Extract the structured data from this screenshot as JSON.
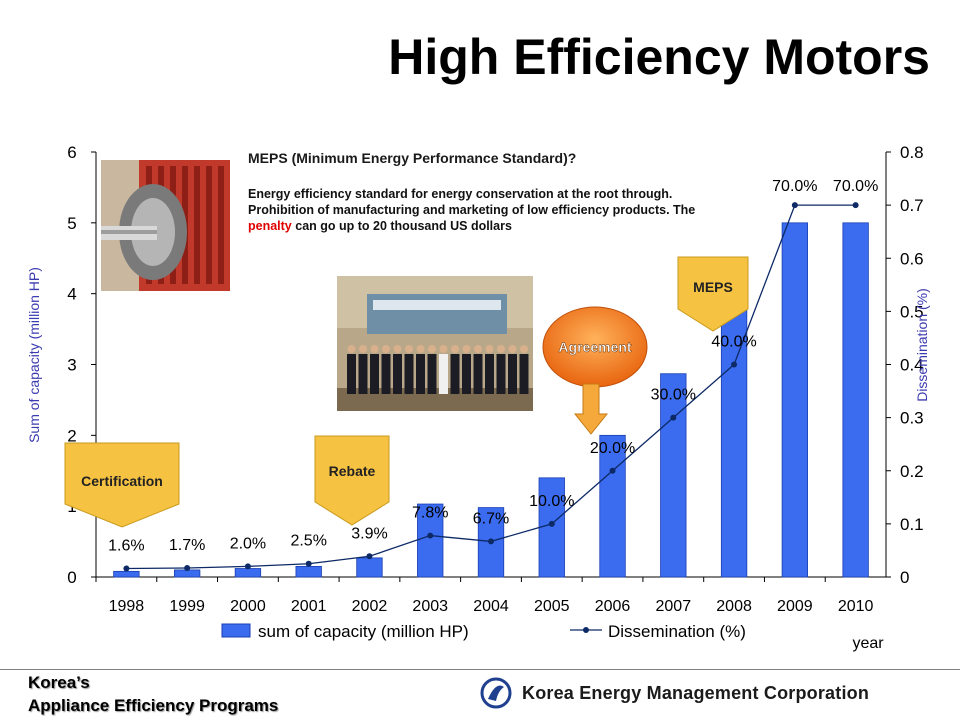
{
  "slide": {
    "title": "High Efficiency Motors",
    "footer_line1": "Korea’s",
    "footer_line2": "Appliance Efficiency Programs",
    "org_name": "Korea Energy Management Corporation",
    "logo_icon": "kemco-logo-icon"
  },
  "meps_note": {
    "heading": "MEPS (Minimum Energy Performance Standard)?",
    "desc_before": "Energy efficiency standard for energy conservation at the root through.  Prohibition of manufacturing and marketing of low efficiency products. The ",
    "desc_red": "penalty",
    "desc_after": " can go up to 20 thousand US dollars",
    "red_color": "#e00000"
  },
  "photos": {
    "motor": "motor-photo",
    "ceremony": "agreement-ceremony-photo"
  },
  "callouts": [
    {
      "label": "Certification",
      "shape": "pentagon-down",
      "color": "#f5c242"
    },
    {
      "label": "Rebate",
      "shape": "pentagon-down",
      "color": "#f5c242"
    },
    {
      "label": "Agreement",
      "shape": "ellipse",
      "color": "#f47a1e"
    },
    {
      "label": "MEPS",
      "shape": "pentagon-down",
      "color": "#f5c242"
    }
  ],
  "chart_data": {
    "type": "bar",
    "categories": [
      "1998",
      "1999",
      "2000",
      "2001",
      "2002",
      "2003",
      "2004",
      "2005",
      "2006",
      "2007",
      "2008",
      "2009",
      "2010"
    ],
    "series": [
      {
        "name": "sum of capacity (million HP)",
        "type": "bar",
        "axis": "left",
        "color": "#3b6cf0",
        "values": [
          0.08,
          0.1,
          0.12,
          0.15,
          0.27,
          1.03,
          0.98,
          1.4,
          2.0,
          2.87,
          3.82,
          5.0,
          5.0
        ]
      },
      {
        "name": "Dissemination (%)",
        "type": "line",
        "axis": "right",
        "color": "#0d2a66",
        "values": [
          0.016,
          0.017,
          0.02,
          0.025,
          0.039,
          0.078,
          0.067,
          0.1,
          0.2,
          0.3,
          0.4,
          0.7,
          0.7
        ],
        "labels": [
          "1.6%",
          "1.7%",
          "2.0%",
          "2.5%",
          "3.9%",
          "7.8%",
          "6.7%",
          "10.0%",
          "20.0%",
          "30.0%",
          "40.0%",
          "70.0%",
          "70.0%"
        ]
      }
    ],
    "ylabel": "Sum of capacity (million HP)",
    "y2label": "Dissemination (%)",
    "xlabel": "year",
    "ylim": [
      0,
      6
    ],
    "yticks": [
      "0",
      "1",
      "2",
      "3",
      "4",
      "5",
      "6"
    ],
    "y2lim": [
      0,
      0.8
    ],
    "y2ticks": [
      "0",
      "0.1",
      "0.2",
      "0.3",
      "0.4",
      "0.5",
      "0.6",
      "0.7",
      "0.8"
    ],
    "grid": false,
    "legend_position": "bottom"
  }
}
